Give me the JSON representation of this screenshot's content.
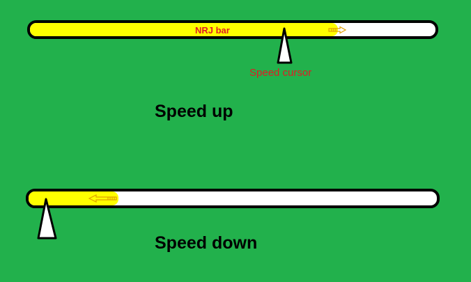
{
  "colors": {
    "background": "#22b14c",
    "bar_fill": "#ffffff",
    "bar_outline": "#000000",
    "energy_fill": "#ffff00",
    "label_red": "#e01b24",
    "arrow_orange": "#e0a000",
    "cursor_fill": "#ffffff",
    "cursor_outline": "#000000"
  },
  "top_panel": {
    "bar_label": "NRJ bar",
    "cursor_label": "Speed cursor",
    "caption": "Speed up",
    "energy_level": 0.76,
    "arrow_direction": "right",
    "arrow_icon": "arrow-right-icon"
  },
  "bottom_panel": {
    "caption": "Speed down",
    "energy_level": 0.22,
    "arrow_direction": "left",
    "arrow_icon": "arrow-left-icon"
  }
}
